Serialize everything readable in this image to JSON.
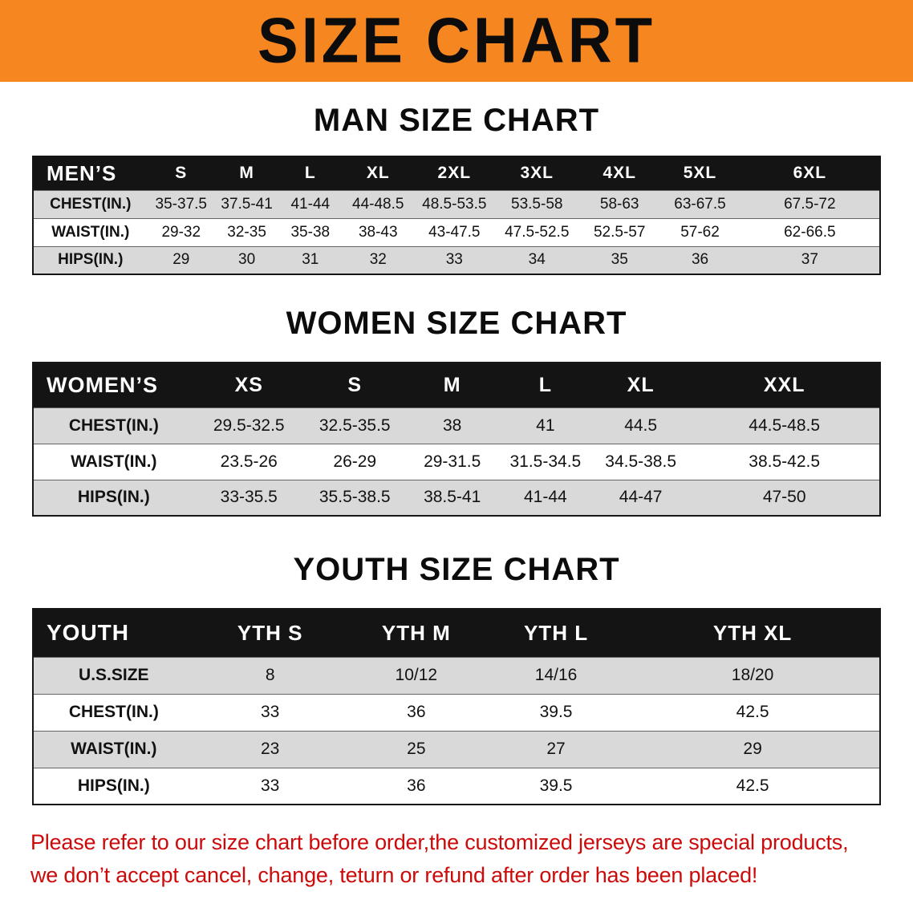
{
  "banner": {
    "title": "SIZE CHART"
  },
  "sections": [
    {
      "heading": "MAN SIZE CHART",
      "table": {
        "header": [
          "MEN’S",
          "S",
          "M",
          "L",
          "XL",
          "2XL",
          "3XL",
          "4XL",
          "5XL",
          "6XL"
        ],
        "col_widths": [
          "13.5%",
          "8%",
          "7.5%",
          "7.5%",
          "8.5%",
          "9.5%",
          "10%",
          "9.5%",
          "9.5%",
          "16.5%"
        ],
        "rows": [
          [
            "CHEST(IN.)",
            "35-37.5",
            "37.5-41",
            "41-44",
            "44-48.5",
            "48.5-53.5",
            "53.5-58",
            "58-63",
            "63-67.5",
            "67.5-72"
          ],
          [
            "WAIST(IN.)",
            "29-32",
            "32-35",
            "35-38",
            "38-43",
            "43-47.5",
            "47.5-52.5",
            "52.5-57",
            "57-62",
            "62-66.5"
          ],
          [
            "HIPS(IN.)",
            "29",
            "30",
            "31",
            "32",
            "33",
            "34",
            "35",
            "36",
            "37"
          ]
        ]
      }
    },
    {
      "heading": "WOMEN SIZE CHART",
      "table": {
        "header": [
          "WOMEN’S",
          "XS",
          "S",
          "M",
          "L",
          "XL",
          "XXL"
        ],
        "col_widths": [
          "19%",
          "13%",
          "12%",
          "11%",
          "11%",
          "11.5%",
          "22.5%"
        ],
        "rows": [
          [
            "CHEST(IN.)",
            "29.5-32.5",
            "32.5-35.5",
            "38",
            "41",
            "44.5",
            "44.5-48.5"
          ],
          [
            "WAIST(IN.)",
            "23.5-26",
            "26-29",
            "29-31.5",
            "31.5-34.5",
            "34.5-38.5",
            "38.5-42.5"
          ],
          [
            "HIPS(IN.)",
            "33-35.5",
            "35.5-38.5",
            "38.5-41",
            "41-44",
            "44-47",
            "47-50"
          ]
        ]
      }
    },
    {
      "heading": "YOUTH SIZE CHART",
      "table": {
        "header": [
          "YOUTH",
          "YTH S",
          "YTH M",
          "YTH L",
          "YTH XL"
        ],
        "col_widths": [
          "19%",
          "18%",
          "16.5%",
          "16.5%",
          "30%"
        ],
        "rows": [
          [
            "U.S.SIZE",
            "8",
            "10/12",
            "14/16",
            "18/20"
          ],
          [
            "CHEST(IN.)",
            "33",
            "36",
            "39.5",
            "42.5"
          ],
          [
            "WAIST(IN.)",
            "23",
            "25",
            "27",
            "29"
          ],
          [
            "HIPS(IN.)",
            "33",
            "36",
            "39.5",
            "42.5"
          ]
        ]
      }
    }
  ],
  "disclaimer": {
    "line1": "Please refer to our size chart before order,the customized jerseys are special products,",
    "line2": "we don’t accept cancel, change, teturn or refund after order has been placed!"
  },
  "colors": {
    "banner_orange": "#f6861f",
    "header_black": "#141414",
    "row_shade_gray": "#d9d9d9",
    "disclaimer_red": "#cc0a0a"
  }
}
